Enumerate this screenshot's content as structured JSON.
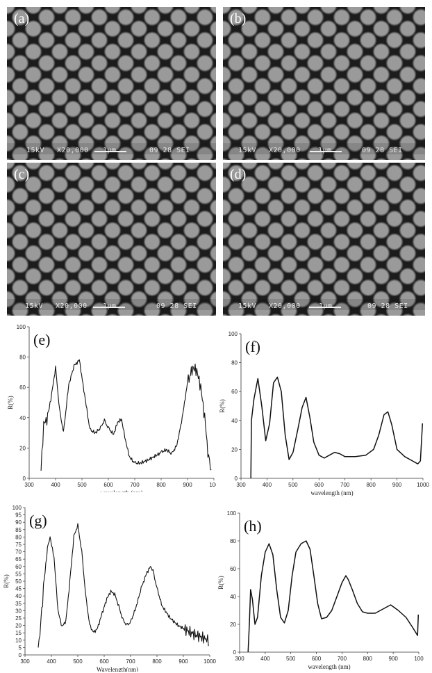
{
  "sem_panels": [
    {
      "label": "(a)",
      "voltage": "15kV",
      "magnification": "X20,000",
      "scale": "1μm",
      "code": "09 28 SEI"
    },
    {
      "label": "(b)",
      "voltage": "15kV",
      "magnification": "X20,000",
      "scale": "1μm",
      "code": "09 28 SEI"
    },
    {
      "label": "(c)",
      "voltage": "15kV",
      "magnification": "X20,000",
      "scale": "1μm",
      "code": "09 28 SEI"
    },
    {
      "label": "(d)",
      "voltage": "15kV",
      "magnification": "X20,000",
      "scale": "1μm",
      "code": "09 28 SEI"
    }
  ],
  "chart_data": [
    {
      "panel": "(e)",
      "type": "line",
      "xlabel": "wavelength (nm)",
      "ylabel": "R(%)",
      "xlim": [
        300,
        1000
      ],
      "ylim": [
        0,
        100
      ],
      "xticks": [
        "300",
        "400",
        "500",
        "600",
        "700",
        "800",
        "900",
        "100"
      ],
      "yticks": [
        "0",
        "20",
        "40",
        "60",
        "80",
        "100"
      ],
      "noisy": true,
      "series": [
        {
          "x": [
            345,
            355,
            370,
            385,
            400,
            415,
            430,
            450,
            470,
            490,
            510,
            530,
            550,
            570,
            585,
            600,
            620,
            635,
            650,
            665,
            680,
            700,
            720,
            750,
            780,
            800,
            820,
            840,
            860,
            880,
            900,
            920,
            935,
            950,
            965,
            980,
            990
          ],
          "y": [
            5,
            35,
            40,
            55,
            73,
            45,
            30,
            62,
            74,
            78,
            55,
            32,
            30,
            33,
            38,
            33,
            29,
            37,
            39,
            25,
            14,
            10,
            10,
            12,
            15,
            17,
            19,
            16,
            22,
            40,
            63,
            73,
            71,
            60,
            40,
            12,
            5
          ]
        }
      ]
    },
    {
      "panel": "(f)",
      "type": "line",
      "xlabel": "wavelength (nm)",
      "ylabel": "R(%)",
      "xlim": [
        300,
        1000
      ],
      "ylim": [
        0,
        100
      ],
      "xticks": [
        "300",
        "400",
        "500",
        "600",
        "700",
        "800",
        "900",
        "1000"
      ],
      "yticks": [
        "0",
        "20",
        "40",
        "60",
        "80",
        "100"
      ],
      "noisy": false,
      "series": [
        {
          "x": [
            338,
            340,
            350,
            365,
            380,
            395,
            410,
            425,
            440,
            455,
            470,
            485,
            500,
            520,
            535,
            550,
            565,
            580,
            600,
            620,
            640,
            660,
            680,
            700,
            740,
            780,
            810,
            830,
            850,
            865,
            880,
            900,
            930,
            960,
            980,
            990,
            998
          ],
          "y": [
            0,
            40,
            55,
            69,
            50,
            26,
            38,
            66,
            70,
            60,
            30,
            13,
            18,
            35,
            49,
            56,
            42,
            25,
            16,
            14,
            16,
            18,
            17,
            15,
            15,
            16,
            20,
            30,
            44,
            46,
            37,
            20,
            15,
            12,
            10,
            12,
            38
          ]
        }
      ]
    },
    {
      "panel": "(g)",
      "type": "line",
      "xlabel": "Wavelength(nm)",
      "ylabel": "R(%)",
      "xlim": [
        300,
        1000
      ],
      "ylim": [
        0,
        100
      ],
      "xticks": [
        "300",
        "400",
        "500",
        "600",
        "700",
        "800",
        "900",
        "1000"
      ],
      "yticks": [
        "0",
        "5",
        "10",
        "15",
        "20",
        "25",
        "30",
        "35",
        "40",
        "45",
        "50",
        "55",
        "60",
        "65",
        "70",
        "75",
        "80",
        "85",
        "90",
        "95",
        "100"
      ],
      "noisy": true,
      "series": [
        {
          "x": [
            350,
            360,
            370,
            385,
            395,
            410,
            425,
            440,
            455,
            470,
            485,
            500,
            515,
            530,
            545,
            560,
            575,
            590,
            610,
            625,
            640,
            655,
            670,
            685,
            700,
            720,
            740,
            760,
            775,
            785,
            800,
            820,
            850,
            880,
            910,
            940,
            970,
            995
          ],
          "y": [
            5,
            20,
            45,
            72,
            80,
            66,
            30,
            19,
            23,
            50,
            80,
            88,
            70,
            40,
            20,
            15,
            18,
            27,
            38,
            43,
            41,
            33,
            24,
            20,
            22,
            32,
            45,
            55,
            60,
            57,
            45,
            33,
            25,
            20,
            17,
            14,
            12,
            10
          ]
        }
      ]
    },
    {
      "panel": "(h)",
      "type": "line",
      "xlabel": "wavelength (nm)",
      "ylabel": "R(%)",
      "xlim": [
        300,
        1000
      ],
      "ylim": [
        0,
        100
      ],
      "xticks": [
        "300",
        "400",
        "500",
        "600",
        "700",
        "800",
        "900",
        "100"
      ],
      "yticks": [
        "0",
        "20",
        "40",
        "60",
        "80",
        "100"
      ],
      "noisy": false,
      "series": [
        {
          "x": [
            333,
            338,
            343,
            350,
            360,
            370,
            385,
            400,
            415,
            430,
            445,
            460,
            475,
            490,
            505,
            520,
            540,
            560,
            575,
            590,
            605,
            620,
            640,
            660,
            680,
            700,
            715,
            725,
            740,
            760,
            780,
            800,
            830,
            860,
            890,
            920,
            950,
            975,
            995,
            998
          ],
          "y": [
            0,
            20,
            45,
            38,
            20,
            25,
            55,
            72,
            78,
            70,
            45,
            25,
            21,
            30,
            55,
            72,
            78,
            80,
            74,
            55,
            35,
            24,
            25,
            30,
            40,
            50,
            55,
            52,
            45,
            35,
            29,
            28,
            28,
            31,
            34,
            30,
            25,
            18,
            12,
            27
          ]
        }
      ]
    }
  ]
}
